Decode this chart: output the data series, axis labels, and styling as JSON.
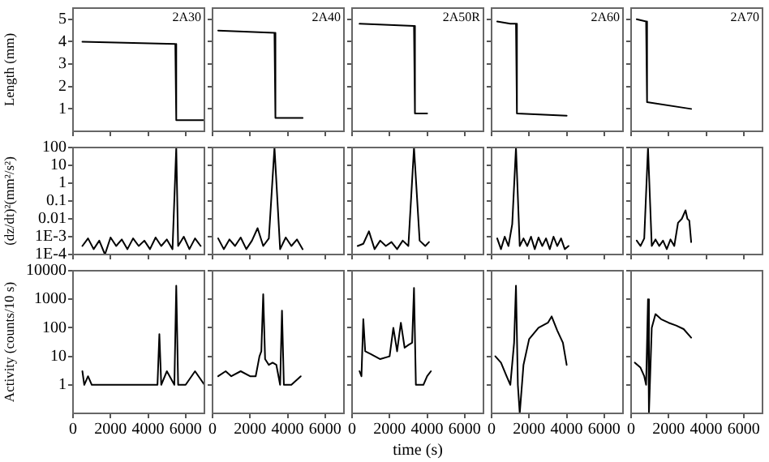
{
  "chart_data": [
    {
      "type": "line",
      "title": "2A30",
      "ylabel": "Length (mm)",
      "marker": "none",
      "tick_labels": "y",
      "x": [
        500,
        5450,
        5500,
        7000
      ],
      "series": [
        {
          "color": "#000000",
          "values": [
            4.0,
            3.9,
            0.5,
            0.5
          ]
        }
      ],
      "xlim": [
        0,
        7000
      ],
      "xticks": [
        0,
        2000,
        4000,
        6000
      ],
      "ylim": [
        0,
        5.5
      ],
      "yticks": [
        1,
        2,
        3,
        4,
        5
      ]
    },
    {
      "type": "line",
      "title": "2A40",
      "marker": "none",
      "tick_labels": false,
      "x": [
        300,
        3300,
        3350,
        4800
      ],
      "series": [
        {
          "color": "#000000",
          "values": [
            4.5,
            4.4,
            0.6,
            0.6
          ]
        }
      ],
      "xlim": [
        0,
        7000
      ],
      "xticks": [
        0,
        2000,
        4000,
        6000
      ],
      "ylim": [
        0,
        5.5
      ],
      "yticks": [
        1,
        2,
        3,
        4,
        5
      ]
    },
    {
      "type": "line",
      "title": "2A50R",
      "marker": "none",
      "tick_labels": false,
      "x": [
        400,
        3300,
        3350,
        4000
      ],
      "series": [
        {
          "color": "#000000",
          "values": [
            4.8,
            4.7,
            0.8,
            0.8
          ]
        }
      ],
      "xlim": [
        0,
        7000
      ],
      "xticks": [
        0,
        2000,
        4000,
        6000
      ],
      "ylim": [
        0,
        5.5
      ],
      "yticks": [
        1,
        2,
        3,
        4,
        5
      ]
    },
    {
      "type": "line",
      "title": "2A60",
      "marker": "none",
      "tick_labels": false,
      "x": [
        300,
        1000,
        1300,
        1350,
        4000
      ],
      "series": [
        {
          "color": "#000000",
          "values": [
            4.9,
            4.8,
            4.8,
            0.8,
            0.7
          ]
        }
      ],
      "xlim": [
        0,
        7000
      ],
      "xticks": [
        0,
        2000,
        4000,
        6000
      ],
      "ylim": [
        0,
        5.5
      ],
      "yticks": [
        1,
        2,
        3,
        4,
        5
      ]
    },
    {
      "type": "line",
      "title": "2A70",
      "marker": "none",
      "tick_labels": false,
      "x": [
        300,
        800,
        850,
        3200
      ],
      "series": [
        {
          "color": "#000000",
          "values": [
            5.0,
            4.9,
            1.3,
            1.0
          ]
        }
      ],
      "xlim": [
        0,
        7000
      ],
      "xticks": [
        0,
        2000,
        4000,
        6000
      ],
      "ylim": [
        0,
        5.5
      ],
      "yticks": [
        1,
        2,
        3,
        4,
        5
      ]
    },
    {
      "type": "line",
      "ylabel": "(dz/dt)²(mm²/s²)",
      "marker": "none",
      "log": "y",
      "tick_labels": "y",
      "x": [
        500,
        800,
        1100,
        1400,
        1700,
        2000,
        2300,
        2600,
        2900,
        3200,
        3500,
        3800,
        4100,
        4400,
        4700,
        5000,
        5300,
        5500,
        5600,
        5900,
        6200,
        6500,
        6800
      ],
      "series": [
        {
          "color": "#000000",
          "values": [
            0.0003,
            0.0008,
            0.0002,
            0.0006,
            0.0001,
            0.0009,
            0.0003,
            0.0007,
            0.0002,
            0.0008,
            0.0003,
            0.0006,
            0.0002,
            0.0009,
            0.0003,
            0.0007,
            0.0002,
            100,
            0.0003,
            0.001,
            0.0002,
            0.0008,
            0.0003
          ]
        }
      ],
      "xlim": [
        0,
        7000
      ],
      "xticks": [
        0,
        2000,
        4000,
        6000
      ],
      "ylim": [
        0.0001,
        100
      ],
      "yticks": [
        {
          "value": 0.0001,
          "label": "1E-4"
        },
        {
          "value": 0.001,
          "label": "1E-3"
        },
        0.01,
        0.1,
        1,
        10,
        100
      ]
    },
    {
      "type": "line",
      "marker": "none",
      "log": "y",
      "tick_labels": false,
      "x": [
        300,
        600,
        900,
        1200,
        1500,
        1800,
        2100,
        2400,
        2700,
        3000,
        3300,
        3600,
        3900,
        4200,
        4500,
        4800
      ],
      "series": [
        {
          "color": "#000000",
          "values": [
            0.0008,
            0.0002,
            0.0007,
            0.0003,
            0.0009,
            0.0002,
            0.0006,
            0.003,
            0.0003,
            0.0008,
            100,
            0.0002,
            0.0009,
            0.0003,
            0.0007,
            0.0002
          ]
        }
      ],
      "xlim": [
        0,
        7000
      ],
      "xticks": [
        0,
        2000,
        4000,
        6000
      ],
      "ylim": [
        0.0001,
        100
      ],
      "yticks": [
        {
          "value": 0.0001,
          "label": null
        },
        {
          "value": 0.001,
          "label": null
        },
        {
          "value": 0.01,
          "label": null
        },
        {
          "value": 0.1,
          "label": null
        },
        {
          "value": 1,
          "label": null
        },
        {
          "value": 10,
          "label": null
        },
        {
          "value": 100,
          "label": null
        }
      ]
    },
    {
      "type": "line",
      "marker": "none",
      "log": "y",
      "tick_labels": false,
      "x": [
        300,
        600,
        900,
        1200,
        1500,
        1800,
        2100,
        2400,
        2700,
        3000,
        3300,
        3600,
        3900,
        4100
      ],
      "series": [
        {
          "color": "#000000",
          "values": [
            0.0003,
            0.0004,
            0.002,
            0.0002,
            0.0006,
            0.0003,
            0.0005,
            0.0002,
            0.0006,
            0.0003,
            100,
            0.0006,
            0.0003,
            0.0005
          ]
        }
      ],
      "xlim": [
        0,
        7000
      ],
      "xticks": [
        0,
        2000,
        4000,
        6000
      ],
      "ylim": [
        0.0001,
        100
      ],
      "yticks": [
        {
          "value": 0.0001,
          "label": null
        },
        {
          "value": 0.001,
          "label": null
        },
        {
          "value": 0.01,
          "label": null
        },
        {
          "value": 0.1,
          "label": null
        },
        {
          "value": 1,
          "label": null
        },
        {
          "value": 10,
          "label": null
        },
        {
          "value": 100,
          "label": null
        }
      ]
    },
    {
      "type": "line",
      "marker": "none",
      "log": "y",
      "tick_labels": false,
      "x": [
        300,
        500,
        700,
        900,
        1100,
        1300,
        1500,
        1700,
        1900,
        2100,
        2300,
        2500,
        2700,
        2900,
        3100,
        3300,
        3500,
        3700,
        3900,
        4100
      ],
      "series": [
        {
          "color": "#000000",
          "values": [
            0.0008,
            0.0002,
            0.001,
            0.0003,
            0.005,
            100,
            0.0003,
            0.0008,
            0.0003,
            0.001,
            0.0002,
            0.0009,
            0.0003,
            0.0008,
            0.0002,
            0.001,
            0.0003,
            0.0008,
            0.0002,
            0.0003
          ]
        }
      ],
      "xlim": [
        0,
        7000
      ],
      "xticks": [
        0,
        2000,
        4000,
        6000
      ],
      "ylim": [
        0.0001,
        100
      ],
      "yticks": [
        {
          "value": 0.0001,
          "label": null
        },
        {
          "value": 0.001,
          "label": null
        },
        {
          "value": 0.01,
          "label": null
        },
        {
          "value": 0.1,
          "label": null
        },
        {
          "value": 1,
          "label": null
        },
        {
          "value": 10,
          "label": null
        },
        {
          "value": 100,
          "label": null
        }
      ]
    },
    {
      "type": "line",
      "marker": "none",
      "log": "y",
      "tick_labels": false,
      "x": [
        300,
        500,
        700,
        900,
        1100,
        1300,
        1500,
        1700,
        1900,
        2100,
        2300,
        2500,
        2700,
        2900,
        3000,
        3100,
        3200
      ],
      "series": [
        {
          "color": "#000000",
          "values": [
            0.0006,
            0.0003,
            0.0008,
            100,
            0.0003,
            0.0007,
            0.0003,
            0.0006,
            0.0002,
            0.0007,
            0.0003,
            0.006,
            0.01,
            0.03,
            0.01,
            0.008,
            0.0005
          ]
        }
      ],
      "xlim": [
        0,
        7000
      ],
      "xticks": [
        0,
        2000,
        4000,
        6000
      ],
      "ylim": [
        0.0001,
        100
      ],
      "yticks": [
        {
          "value": 0.0001,
          "label": null
        },
        {
          "value": 0.001,
          "label": null
        },
        {
          "value": 0.01,
          "label": null
        },
        {
          "value": 0.1,
          "label": null
        },
        {
          "value": 1,
          "label": null
        },
        {
          "value": 10,
          "label": null
        },
        {
          "value": 100,
          "label": null
        }
      ]
    },
    {
      "type": "line",
      "ylabel": "Activity (counts/10 s)",
      "marker": "none",
      "log": "y",
      "x": [
        500,
        600,
        800,
        1000,
        1500,
        2000,
        2500,
        3000,
        3500,
        4000,
        4500,
        4600,
        4700,
        5000,
        5400,
        5500,
        5600,
        6000,
        6500,
        7000
      ],
      "series": [
        {
          "color": "#000000",
          "values": [
            3,
            1,
            2,
            1,
            1,
            1,
            1,
            1,
            1,
            1,
            1,
            60,
            1,
            3,
            1,
            3000,
            1,
            1,
            3,
            1
          ]
        }
      ],
      "xlim": [
        0,
        7000
      ],
      "xticks": [
        0,
        2000,
        4000,
        6000
      ],
      "ylim": [
        0.1,
        10000
      ],
      "yticks": [
        1,
        10,
        100,
        1000,
        10000
      ]
    },
    {
      "type": "line",
      "marker": "none",
      "log": "y",
      "tick_labels": "x",
      "x": [
        300,
        700,
        1000,
        1500,
        2000,
        2300,
        2500,
        2600,
        2700,
        2800,
        3000,
        3200,
        3400,
        3600,
        3700,
        3800,
        4200,
        4700
      ],
      "series": [
        {
          "color": "#000000",
          "values": [
            2,
            3,
            2,
            3,
            2,
            2,
            10,
            15,
            1500,
            8,
            5,
            6,
            5,
            1,
            400,
            1,
            1,
            2
          ]
        }
      ],
      "xlim": [
        0,
        7000
      ],
      "xticks": [
        0,
        2000,
        4000,
        6000
      ],
      "ylim": [
        0.1,
        10000
      ],
      "yticks": [
        1,
        10,
        100,
        1000,
        10000
      ]
    },
    {
      "type": "line",
      "xlabel": "time (s)",
      "marker": "none",
      "log": "y",
      "tick_labels": "x",
      "x": [
        400,
        500,
        600,
        700,
        1000,
        1500,
        2000,
        2200,
        2400,
        2600,
        2800,
        3000,
        3200,
        3300,
        3400,
        3600,
        3800,
        4000,
        4200
      ],
      "series": [
        {
          "color": "#000000",
          "values": [
            3,
            2,
            200,
            15,
            12,
            8,
            10,
            100,
            15,
            150,
            20,
            25,
            30,
            2500,
            1,
            1,
            1,
            2,
            3
          ]
        }
      ],
      "xlim": [
        0,
        7000
      ],
      "xticks": [
        0,
        2000,
        4000,
        6000
      ],
      "ylim": [
        0.1,
        10000
      ],
      "yticks": [
        1,
        10,
        100,
        1000,
        10000
      ]
    },
    {
      "type": "line",
      "marker": "none",
      "log": "y",
      "tick_labels": "x",
      "x": [
        200,
        500,
        800,
        1000,
        1200,
        1300,
        1400,
        1500,
        1700,
        2000,
        2500,
        3000,
        3200,
        3500,
        3800,
        4000
      ],
      "series": [
        {
          "color": "#000000",
          "values": [
            10,
            6,
            2,
            1,
            30,
            3000,
            1,
            0.1,
            5,
            40,
            100,
            150,
            250,
            80,
            30,
            5
          ]
        }
      ],
      "xlim": [
        0,
        7000
      ],
      "xticks": [
        0,
        2000,
        4000,
        6000
      ],
      "ylim": [
        0.1,
        10000
      ],
      "yticks": [
        1,
        10,
        100,
        1000,
        10000
      ]
    },
    {
      "type": "line",
      "marker": "none",
      "log": "y",
      "tick_labels": "x",
      "x": [
        200,
        500,
        700,
        800,
        900,
        950,
        1100,
        1300,
        1600,
        2000,
        2400,
        2800,
        3200
      ],
      "series": [
        {
          "color": "#000000",
          "values": [
            6,
            4,
            2,
            1,
            1000,
            0.1,
            100,
            300,
            200,
            150,
            120,
            90,
            45
          ]
        }
      ],
      "xlim": [
        0,
        7000
      ],
      "xticks": [
        0,
        2000,
        4000,
        6000
      ],
      "ylim": [
        0.1,
        10000
      ],
      "yticks": [
        1,
        10,
        100,
        1000,
        10000
      ]
    }
  ]
}
